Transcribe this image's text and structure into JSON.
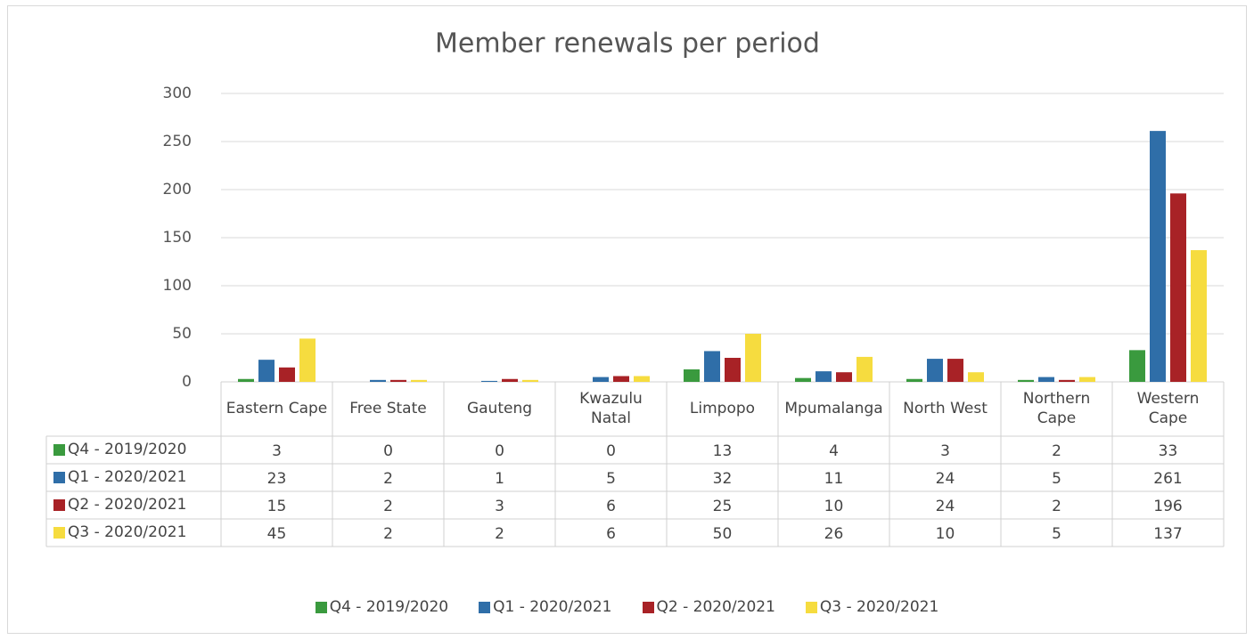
{
  "chart_data": {
    "type": "bar",
    "title": "Member renewals per period",
    "categories": [
      "Eastern Cape",
      "Free State",
      "Gauteng",
      "Kwazulu Natal",
      "Limpopo",
      "Mpumalanga",
      "North West",
      "Northern Cape",
      "Western Cape"
    ],
    "series": [
      {
        "name": "Q4 - 2019/2020",
        "color": "#3a9a3e",
        "values": [
          3,
          0,
          0,
          0,
          13,
          4,
          3,
          2,
          33
        ]
      },
      {
        "name": "Q1 - 2020/2021",
        "color": "#2f6ea8",
        "values": [
          23,
          2,
          1,
          5,
          32,
          11,
          24,
          5,
          261
        ]
      },
      {
        "name": "Q2 - 2020/2021",
        "color": "#a82226",
        "values": [
          15,
          2,
          3,
          6,
          25,
          10,
          24,
          2,
          196
        ]
      },
      {
        "name": "Q3 - 2020/2021",
        "color": "#f6dc3f",
        "values": [
          45,
          2,
          2,
          6,
          50,
          26,
          10,
          5,
          137
        ]
      }
    ],
    "ylim": [
      0,
      300
    ],
    "yticks": [
      0,
      50,
      100,
      150,
      200,
      250,
      300
    ],
    "grid": true
  }
}
